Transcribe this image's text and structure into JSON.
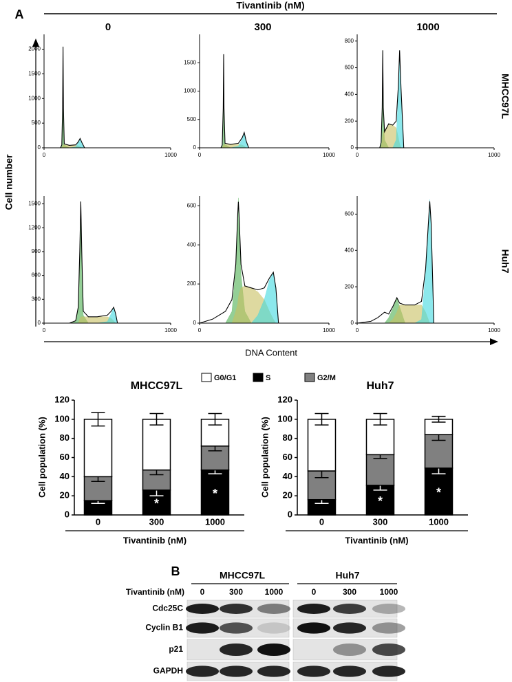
{
  "figure": {
    "panel_a": "A",
    "treatment": "Tivantinib (nM)",
    "doses": [
      "0",
      "300",
      "1000"
    ],
    "cell_lines": [
      "MHCC97L",
      "Huh7"
    ],
    "y_label": "Cell number",
    "x_label": "DNA Content"
  },
  "blot": {
    "panel": "B",
    "treatment_label": "Tivantinib (nM)",
    "cell_lines": [
      "MHCC97L",
      "Huh7"
    ],
    "doses": [
      "0",
      "300",
      "1000"
    ],
    "proteins": [
      "Cdc25C",
      "Cyclin B1",
      "p21",
      "GAPDH"
    ]
  },
  "chart_data": [
    {
      "type": "area",
      "xlim": [
        0,
        1000
      ],
      "xticks": [
        0,
        1000
      ],
      "ylim": [
        0,
        2300
      ],
      "yticks": [
        0,
        500,
        1000,
        1500,
        2000
      ],
      "x": [
        0,
        130,
        140,
        147,
        150,
        153,
        160,
        200,
        250,
        270,
        285,
        300,
        320,
        1000
      ],
      "series": [
        {
          "style": "fill",
          "color": "#4caf50",
          "values": [
            0,
            0,
            60,
            800,
            2050,
            800,
            60,
            0,
            0,
            0,
            0,
            0,
            0,
            0
          ]
        },
        {
          "style": "fill",
          "color": "#c8c060",
          "values": [
            0,
            0,
            0,
            40,
            60,
            60,
            60,
            50,
            50,
            40,
            20,
            0,
            0,
            0
          ]
        },
        {
          "style": "fill",
          "color": "#40d8e0",
          "values": [
            0,
            0,
            0,
            0,
            0,
            0,
            0,
            0,
            20,
            110,
            190,
            100,
            0,
            0
          ]
        },
        {
          "style": "line",
          "color": "#000000",
          "values": [
            0,
            0,
            60,
            800,
            2050,
            800,
            80,
            50,
            60,
            120,
            190,
            100,
            0,
            0
          ]
        }
      ]
    },
    {
      "type": "area",
      "xlim": [
        0,
        1000
      ],
      "xticks": [
        0,
        1000
      ],
      "ylim": [
        0,
        2000
      ],
      "yticks": [
        0,
        500,
        1000,
        1500
      ],
      "x": [
        0,
        165,
        175,
        183,
        186,
        189,
        197,
        240,
        300,
        330,
        345,
        360,
        380,
        1000
      ],
      "series": [
        {
          "style": "fill",
          "color": "#4caf50",
          "values": [
            0,
            0,
            50,
            700,
            1650,
            700,
            60,
            0,
            0,
            0,
            0,
            0,
            0,
            0
          ]
        },
        {
          "style": "fill",
          "color": "#c8c060",
          "values": [
            0,
            0,
            0,
            40,
            60,
            60,
            60,
            60,
            60,
            50,
            30,
            0,
            0,
            0
          ]
        },
        {
          "style": "fill",
          "color": "#40d8e0",
          "values": [
            0,
            0,
            0,
            0,
            0,
            0,
            0,
            0,
            30,
            160,
            270,
            120,
            0,
            0
          ]
        },
        {
          "style": "line",
          "color": "#000000",
          "values": [
            0,
            0,
            50,
            700,
            1650,
            700,
            80,
            60,
            80,
            180,
            270,
            120,
            0,
            0
          ]
        }
      ]
    },
    {
      "type": "area",
      "xlim": [
        0,
        1000
      ],
      "xticks": [
        0,
        1000
      ],
      "ylim": [
        0,
        850
      ],
      "yticks": [
        0,
        200,
        400,
        600,
        800
      ],
      "x": [
        0,
        165,
        175,
        183,
        187,
        191,
        200,
        230,
        260,
        285,
        300,
        310,
        320,
        340,
        1000
      ],
      "series": [
        {
          "style": "fill",
          "color": "#4caf50",
          "values": [
            0,
            0,
            40,
            300,
            730,
            300,
            60,
            0,
            0,
            0,
            0,
            0,
            0,
            0,
            0
          ]
        },
        {
          "style": "fill",
          "color": "#c8c060",
          "values": [
            0,
            0,
            0,
            60,
            100,
            120,
            130,
            180,
            170,
            150,
            80,
            30,
            0,
            0,
            0
          ]
        },
        {
          "style": "fill",
          "color": "#40d8e0",
          "values": [
            0,
            0,
            0,
            0,
            0,
            0,
            0,
            0,
            0,
            60,
            400,
            730,
            450,
            0,
            0
          ]
        },
        {
          "style": "line",
          "color": "#000000",
          "values": [
            0,
            0,
            40,
            300,
            730,
            300,
            120,
            180,
            170,
            200,
            450,
            730,
            450,
            0,
            0
          ]
        }
      ]
    },
    {
      "type": "area",
      "xlim": [
        0,
        1000
      ],
      "xticks": [
        0,
        1000
      ],
      "ylim": [
        0,
        1600
      ],
      "yticks": [
        0,
        300,
        600,
        900,
        1200,
        1500
      ],
      "x": [
        0,
        200,
        250,
        270,
        282,
        290,
        298,
        310,
        350,
        420,
        500,
        530,
        550,
        565,
        580,
        1000
      ],
      "series": [
        {
          "style": "fill",
          "color": "#4caf50",
          "values": [
            0,
            0,
            30,
            200,
            900,
            1530,
            900,
            100,
            0,
            0,
            0,
            0,
            0,
            0,
            0,
            0
          ]
        },
        {
          "style": "fill",
          "color": "#c8c060",
          "values": [
            0,
            0,
            0,
            0,
            50,
            80,
            80,
            80,
            80,
            80,
            80,
            60,
            30,
            0,
            0,
            0
          ]
        },
        {
          "style": "fill",
          "color": "#40d8e0",
          "values": [
            0,
            0,
            0,
            0,
            0,
            0,
            0,
            0,
            0,
            0,
            20,
            120,
            200,
            120,
            0,
            0
          ]
        },
        {
          "style": "line",
          "color": "#000000",
          "values": [
            0,
            0,
            30,
            200,
            900,
            1530,
            900,
            150,
            80,
            80,
            100,
            150,
            200,
            120,
            0,
            0
          ]
        }
      ]
    },
    {
      "type": "area",
      "xlim": [
        0,
        1000
      ],
      "xticks": [
        0,
        1000
      ],
      "ylim": [
        0,
        650
      ],
      "yticks": [
        0,
        200,
        400,
        600
      ],
      "x": [
        0,
        100,
        200,
        250,
        280,
        295,
        300,
        305,
        320,
        350,
        400,
        450,
        500,
        540,
        570,
        590,
        610,
        1000
      ],
      "series": [
        {
          "style": "fill",
          "color": "#4caf50",
          "values": [
            0,
            0,
            0,
            60,
            280,
            560,
            640,
            560,
            250,
            60,
            0,
            0,
            0,
            0,
            0,
            0,
            0,
            0
          ]
        },
        {
          "style": "fill",
          "color": "#c8c060",
          "values": [
            0,
            0,
            0,
            0,
            60,
            100,
            130,
            150,
            180,
            190,
            180,
            160,
            120,
            60,
            20,
            0,
            0,
            0
          ]
        },
        {
          "style": "fill",
          "color": "#40d8e0",
          "values": [
            0,
            0,
            0,
            0,
            0,
            0,
            0,
            0,
            0,
            0,
            0,
            40,
            120,
            220,
            260,
            180,
            0,
            0
          ]
        },
        {
          "style": "line",
          "color": "#000000",
          "values": [
            0,
            20,
            60,
            120,
            300,
            560,
            620,
            560,
            300,
            190,
            180,
            170,
            180,
            230,
            260,
            180,
            0,
            0
          ]
        }
      ]
    },
    {
      "type": "area",
      "xlim": [
        0,
        1000
      ],
      "xticks": [
        0,
        1000
      ],
      "ylim": [
        0,
        700
      ],
      "yticks": [
        0,
        200,
        400,
        600
      ],
      "x": [
        0,
        100,
        150,
        200,
        230,
        260,
        290,
        310,
        350,
        420,
        470,
        500,
        520,
        530,
        540,
        560,
        1000
      ],
      "series": [
        {
          "style": "fill",
          "color": "#4caf50",
          "values": [
            0,
            0,
            0,
            0,
            30,
            80,
            140,
            90,
            0,
            0,
            0,
            0,
            0,
            0,
            0,
            0,
            0
          ]
        },
        {
          "style": "fill",
          "color": "#c8c060",
          "values": [
            0,
            0,
            0,
            0,
            0,
            20,
            60,
            100,
            100,
            100,
            100,
            60,
            20,
            0,
            0,
            0,
            0
          ]
        },
        {
          "style": "fill",
          "color": "#40d8e0",
          "values": [
            0,
            0,
            0,
            0,
            0,
            0,
            0,
            0,
            0,
            0,
            20,
            280,
            550,
            680,
            550,
            0,
            0
          ]
        },
        {
          "style": "line",
          "color": "#000000",
          "values": [
            0,
            10,
            30,
            60,
            50,
            90,
            140,
            110,
            100,
            100,
            120,
            300,
            550,
            670,
            550,
            0,
            0
          ]
        }
      ]
    },
    {
      "type": "bar",
      "stacked": true,
      "title": "MHCC97L",
      "y_label": "Cell population (%)",
      "x_label": "Tivantinib (nM)",
      "categories": [
        "0",
        "300",
        "1000"
      ],
      "ylim": [
        0,
        120
      ],
      "yticks": [
        0,
        20,
        40,
        60,
        80,
        100,
        120
      ],
      "series": [
        {
          "name": "G0/G1",
          "color": "#ffffff",
          "values": [
            60,
            53,
            28
          ],
          "errors": [
            7,
            6,
            6
          ]
        },
        {
          "name": "S",
          "color": "#000000",
          "values": [
            15,
            26,
            47
          ],
          "errors": [
            3,
            6,
            4
          ],
          "significance": [
            null,
            "*",
            "*"
          ]
        },
        {
          "name": "G2/M",
          "color": "#808080",
          "values": [
            25,
            21,
            25
          ],
          "errors": [
            5,
            5,
            5
          ]
        }
      ]
    },
    {
      "type": "bar",
      "stacked": true,
      "title": "Huh7",
      "y_label": "Cell population (%)",
      "x_label": "Tivantinib (nM)",
      "categories": [
        "0",
        "300",
        "1000"
      ],
      "ylim": [
        0,
        120
      ],
      "yticks": [
        0,
        20,
        40,
        60,
        80,
        100,
        120
      ],
      "series": [
        {
          "color": "#ffffff",
          "values": [
            54,
            37,
            16
          ],
          "errors": [
            6,
            6,
            3
          ]
        },
        {
          "color": "#000000",
          "values": [
            16,
            31,
            49
          ],
          "errors": [
            4,
            5,
            6
          ],
          "significance": [
            null,
            "*",
            "*"
          ]
        },
        {
          "color": "#808080",
          "values": [
            30,
            32,
            35
          ],
          "errors": [
            7,
            4,
            6
          ]
        }
      ]
    }
  ]
}
